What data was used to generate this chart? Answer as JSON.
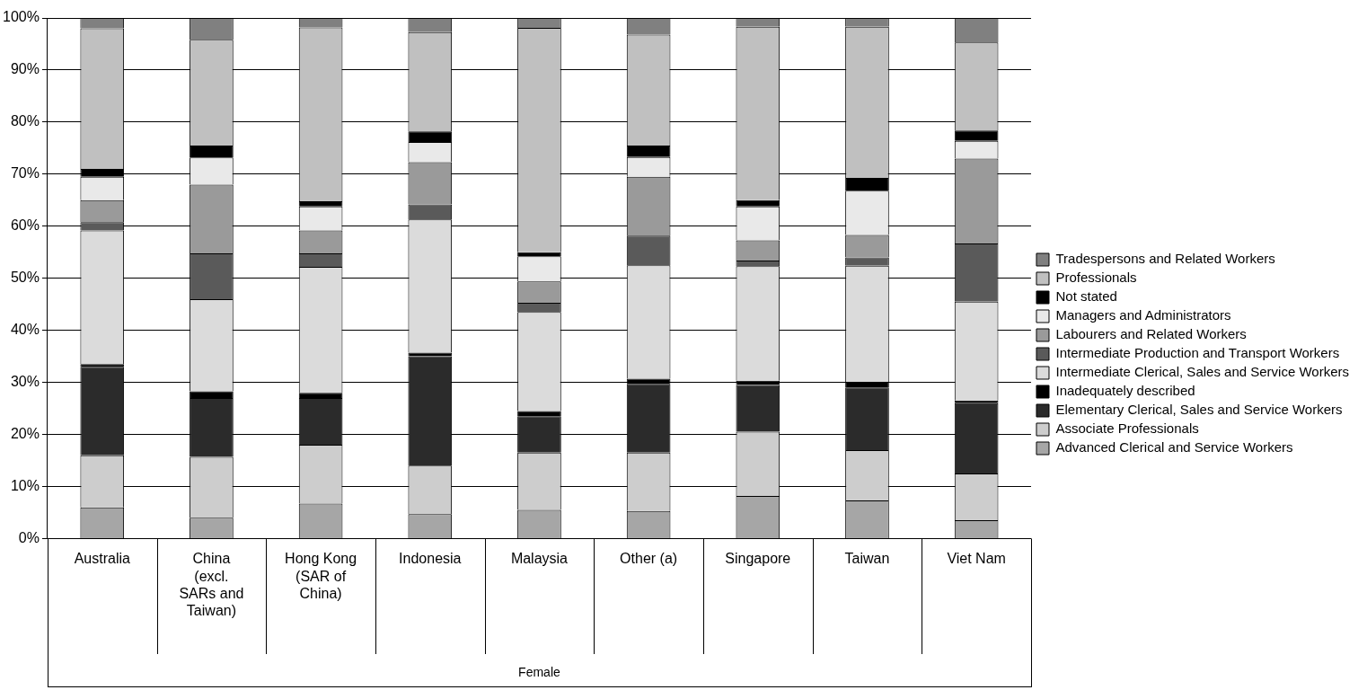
{
  "chart_data": {
    "type": "bar",
    "stacked": true,
    "xlabel": "Female",
    "categories": [
      "Australia",
      "China (excl. SARs and Taiwan)",
      "Hong Kong (SAR of China)",
      "Indonesia",
      "Malaysia",
      "Other (a)",
      "Singapore",
      "Taiwan",
      "Viet Nam"
    ],
    "series": [
      {
        "name": "Advanced Clerical and Service Workers",
        "color": "#a6a6a6",
        "values": [
          6,
          4,
          6.7,
          4.7,
          5.5,
          5.3,
          8.2,
          7.3,
          3.5
        ]
      },
      {
        "name": "Associate Professionals",
        "color": "#cdcdcd",
        "values": [
          10,
          11.7,
          11.3,
          9.3,
          11,
          11.2,
          12.3,
          9.7,
          9
        ]
      },
      {
        "name": "Elementary Clerical, Sales and Service Workers",
        "color": "#2b2b2b",
        "values": [
          17,
          11.3,
          9,
          21,
          7,
          13.2,
          9,
          12,
          13.5
        ]
      },
      {
        "name": "Inadequately described",
        "color": "#000000",
        "values": [
          0.5,
          1.3,
          1,
          0.7,
          1,
          1,
          0.8,
          1.1,
          0.5
        ]
      },
      {
        "name": "Intermediate Clerical, Sales and Service Workers",
        "color": "#dbdbdb",
        "values": [
          25.7,
          17.7,
          24.2,
          25.6,
          19,
          21.8,
          22,
          22.3,
          19
        ]
      },
      {
        "name": "Intermediate Production and Transport Workers",
        "color": "#5a5a5a",
        "values": [
          1.6,
          8.8,
          2.6,
          2.9,
          1.8,
          5.7,
          1.1,
          1.6,
          11.2
        ]
      },
      {
        "name": "Labourers and Related Workers",
        "color": "#9a9a9a",
        "values": [
          4.2,
          13.2,
          4.4,
          8.1,
          4.1,
          11.3,
          3.9,
          4.3,
          16.3
        ]
      },
      {
        "name": "Managers and Administrators",
        "color": "#e9e9e9",
        "values": [
          4.5,
          5.2,
          4.6,
          3.9,
          4.8,
          3.8,
          6.5,
          8.5,
          3.4
        ]
      },
      {
        "name": "Not stated",
        "color": "#000000",
        "values": [
          1.5,
          2.3,
          1,
          2,
          0.8,
          2.2,
          1.2,
          2.5,
          2
        ]
      },
      {
        "name": "Professionals",
        "color": "#c0c0c0",
        "values": [
          27,
          20.3,
          33.4,
          19.1,
          43.1,
          21.3,
          33.3,
          29,
          16.9
        ]
      },
      {
        "name": "Tradespersons and Related Workers",
        "color": "#808080",
        "values": [
          2,
          4.2,
          1.8,
          2.7,
          1.9,
          3.2,
          1.7,
          1.7,
          4.7
        ]
      }
    ],
    "ylim": [
      0,
      100
    ],
    "yticks": [
      {
        "value": 0,
        "label": "0%"
      },
      {
        "value": 10,
        "label": "10%"
      },
      {
        "value": 20,
        "label": "20%"
      },
      {
        "value": 30,
        "label": "30%"
      },
      {
        "value": 40,
        "label": "40%"
      },
      {
        "value": 50,
        "label": "50%"
      },
      {
        "value": 60,
        "label": "60%"
      },
      {
        "value": 70,
        "label": "70%"
      },
      {
        "value": 80,
        "label": "80%"
      },
      {
        "value": 90,
        "label": "90%"
      },
      {
        "value": 100,
        "label": "100%"
      }
    ],
    "grid": "y",
    "legend": "right"
  }
}
